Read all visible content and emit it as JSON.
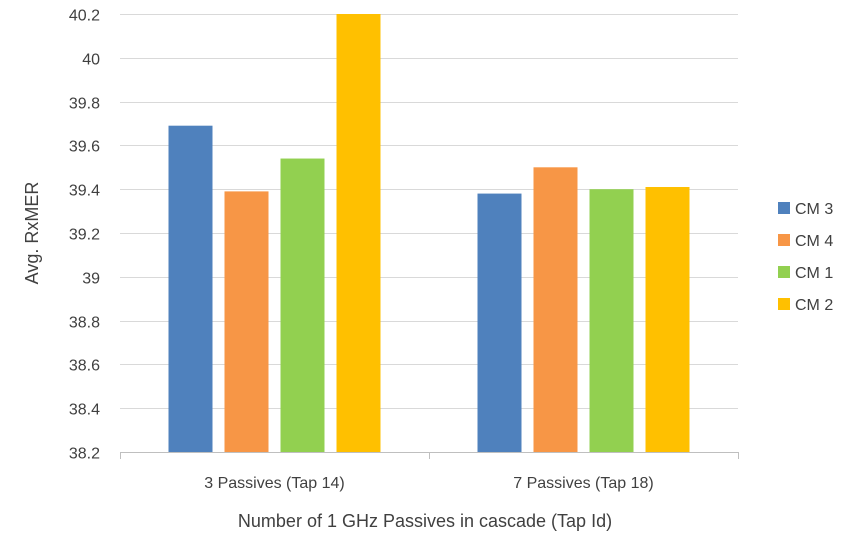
{
  "chart_data": {
    "type": "bar",
    "title": "",
    "xlabel": "Number of 1 GHz Passives in cascade (Tap Id)",
    "ylabel": "Avg. RxMER",
    "categories": [
      "3 Passives (Tap 14)",
      "7 Passives (Tap 18)"
    ],
    "series": [
      {
        "name": "CM 3",
        "color": "#4F81BD",
        "values": [
          39.69,
          39.38
        ]
      },
      {
        "name": "CM 4",
        "color": "#F79646",
        "values": [
          39.39,
          39.5
        ]
      },
      {
        "name": "CM 1",
        "color": "#92D050",
        "values": [
          39.54,
          39.4
        ]
      },
      {
        "name": "CM 2",
        "color": "#FFC000",
        "values": [
          40.2,
          39.41
        ]
      }
    ],
    "ylim": [
      38.2,
      40.2
    ],
    "yticks": [
      "38.2",
      "38.4",
      "38.6",
      "38.8",
      "39",
      "39.2",
      "39.4",
      "39.6",
      "39.8",
      "40",
      "40.2"
    ],
    "grid": true,
    "legend_position": "right"
  }
}
